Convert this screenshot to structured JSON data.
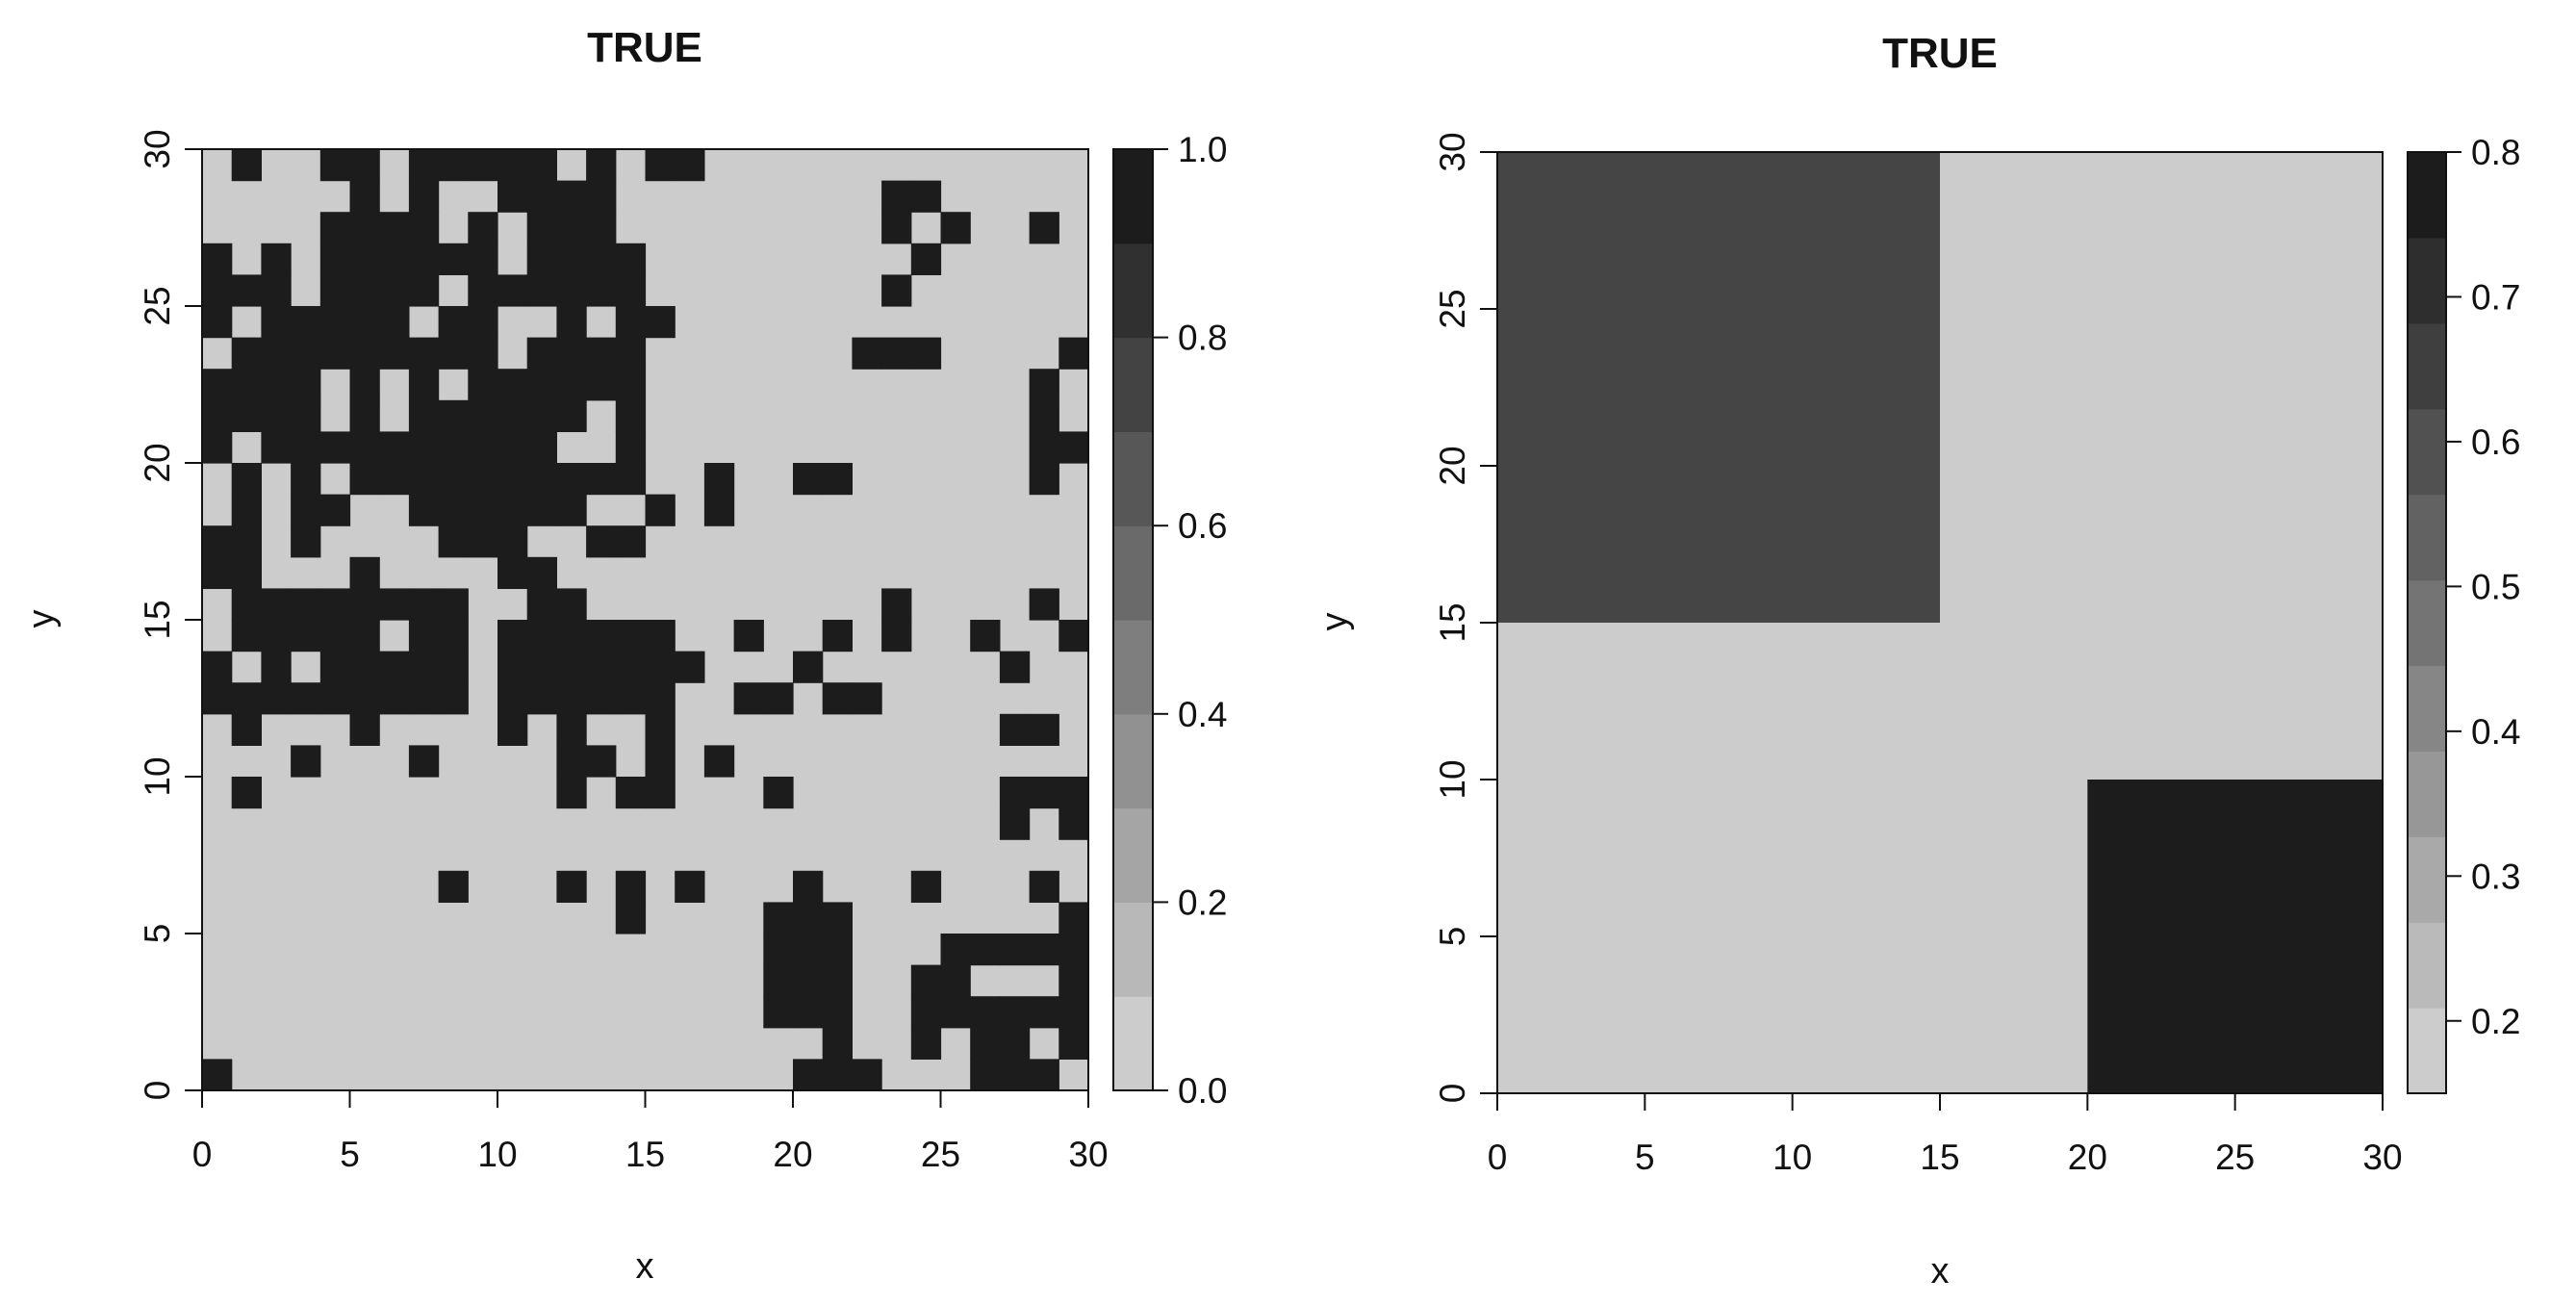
{
  "chart_data": [
    {
      "type": "heatmap",
      "title": "TRUE",
      "xlabel": "x",
      "ylabel": "y",
      "xlim": [
        0,
        30
      ],
      "ylim": [
        0,
        30
      ],
      "x_ticks": [
        "0",
        "5",
        "10",
        "15",
        "20",
        "25",
        "30"
      ],
      "y_ticks": [
        "0",
        "5",
        "10",
        "15",
        "20",
        "25",
        "30"
      ],
      "grid": false,
      "legend": "right",
      "colors": {
        "low": "#cccccc",
        "high": "#1c1c1c"
      },
      "colorbar": {
        "range": [
          0,
          1
        ],
        "levels": 10,
        "ticks": [
          "0.0",
          "0.2",
          "0.4",
          "0.6",
          "0.8",
          "1.0"
        ],
        "tick_values": [
          0,
          0.2,
          0.4,
          0.6,
          0.8,
          1.0
        ]
      },
      "grid_size": [
        30,
        30
      ],
      "cells_note": "rows listed top (y=29) to bottom (y=0); 1 = dark, 0 = light",
      "rows": [
        "010011011111010110000000000000",
        "000001010011110000000001100000",
        "000011110101110000000001010010",
        "101011111101111000000000100000",
        "111011110111111000000001000000",
        "101111101100101100000000000000",
        "011111111101111000000011100001",
        "111101010111111000000000000010",
        "111101011111101000000000000010",
        "101111111111001000000000000011",
        "010101111111111001001100000010",
        "010110011111100101000000000000",
        "110100001110011000000000000000",
        "110001000011000000000000000000",
        "011111111001100000000001000010",
        "011111011011111100100101001001",
        "101011111011111110001000000100",
        "111111111011111100110110000000",
        "010001000010100100000000000110",
        "000100010000110101000000000000",
        "010000000000101100010000000111",
        "000000000000000000000000000101",
        "000000000000000000000000000000",
        "000000001000101010001000100010",
        "000000000000001000011100000001",
        "000000000000000000011100011111",
        "000000000000000000011100110001",
        "000000000000000000011100111111",
        "000000000000000000000100101101",
        "100000000000000000001110001110"
      ]
    },
    {
      "type": "heatmap",
      "title": "TRUE",
      "xlabel": "x",
      "ylabel": "y",
      "xlim": [
        0,
        30
      ],
      "ylim": [
        0,
        30
      ],
      "x_ticks": [
        "0",
        "5",
        "10",
        "15",
        "20",
        "25",
        "30"
      ],
      "y_ticks": [
        "0",
        "5",
        "10",
        "15",
        "20",
        "25",
        "30"
      ],
      "grid": false,
      "legend": "right",
      "colors": {
        "low": "#cccccc",
        "high": "#1c1c1c"
      },
      "colorbar": {
        "range": [
          0.15,
          0.8
        ],
        "levels": 11,
        "ticks": [
          "0.2",
          "0.3",
          "0.4",
          "0.5",
          "0.6",
          "0.7",
          "0.8"
        ],
        "tick_values": [
          0.2,
          0.3,
          0.4,
          0.5,
          0.6,
          0.7,
          0.8
        ]
      },
      "background_value": 0.15,
      "regions": [
        {
          "x": [
            0,
            15
          ],
          "y": [
            15,
            30
          ],
          "value": 0.65
        },
        {
          "x": [
            20,
            30
          ],
          "y": [
            0,
            10
          ],
          "value": 0.8
        }
      ]
    }
  ]
}
